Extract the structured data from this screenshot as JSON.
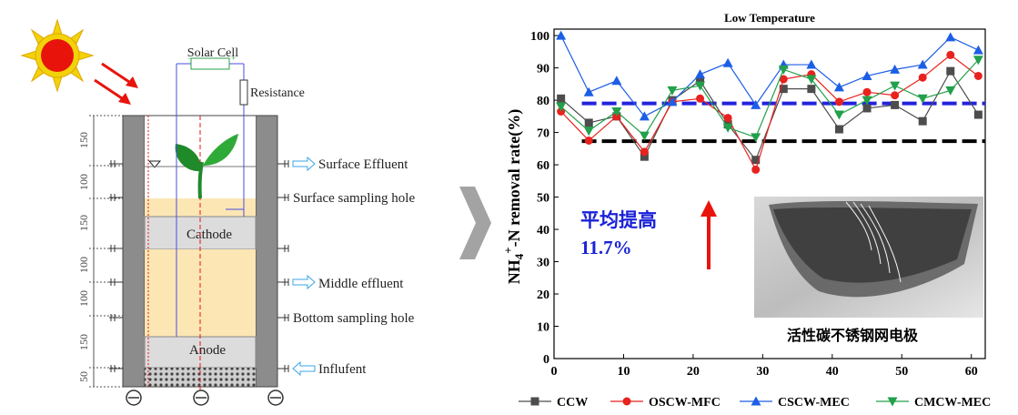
{
  "diagram": {
    "labels": {
      "solar_cell": "Solar Cell",
      "resistance": "Resistance",
      "surface_effluent": "Surface Effluent",
      "surface_sampling_hole": "Surface sampling hole",
      "cathode": "Cathode",
      "middle_effluent": "Middle effluent",
      "bottom_sampling_hole": "Bottom sampling hole",
      "anode": "Anode",
      "influent": "Influfent"
    },
    "dimensions": [
      "150",
      "100",
      "150",
      "100",
      "100",
      "150",
      "50"
    ],
    "colors": {
      "sun": "#f2d20a",
      "sun_core": "#e8140c",
      "arrow": "#e8140c",
      "sand": "#fbe6b4",
      "electrode": "#dcdcdc",
      "wall": "#8c8c8c",
      "wire": "#4a4ee0",
      "plant": "#1f8a2a"
    }
  },
  "annotation": {
    "increase_label": "平均提高",
    "increase_value": "11.7%",
    "photo_caption": "活性碳不锈钢网电极",
    "colors": {
      "text": "#1a22d8",
      "arrow": "#e8140c"
    }
  },
  "chart_data": {
    "type": "line",
    "title": "Low Temperature",
    "xlabel": "",
    "ylabel": "NH4+-N removal rate(%)",
    "xlim": [
      0,
      62
    ],
    "ylim": [
      0,
      102
    ],
    "xticks": [
      0,
      10,
      20,
      30,
      40,
      50,
      60
    ],
    "yticks": [
      0,
      10,
      20,
      30,
      40,
      50,
      60,
      70,
      80,
      90,
      100
    ],
    "x": [
      1,
      5,
      9,
      13,
      17,
      21,
      25,
      29,
      33,
      37,
      41,
      45,
      49,
      53,
      57,
      61
    ],
    "series": [
      {
        "name": "CCW",
        "marker": "square",
        "color": "#4d4d4d",
        "values": [
          80.5,
          73,
          75,
          62.5,
          80,
          86,
          72.5,
          61.5,
          83.5,
          83.5,
          71,
          77.5,
          78.5,
          73.5,
          89,
          75.5
        ]
      },
      {
        "name": "OSCW-MFC",
        "marker": "circle",
        "color": "#e8221e",
        "values": [
          76.5,
          67.5,
          75,
          64,
          79.5,
          80.5,
          74.5,
          58.5,
          86.5,
          88,
          79.5,
          82.5,
          81.5,
          87,
          94,
          87.5
        ]
      },
      {
        "name": "CSCW-MEC",
        "marker": "triangle-up",
        "color": "#1c5ee6",
        "values": [
          100,
          82.5,
          86,
          75,
          79.5,
          88,
          91.5,
          78.5,
          91,
          91,
          84,
          87.5,
          89.5,
          91,
          99.5,
          95.5
        ]
      },
      {
        "name": "CMCW-MEC",
        "marker": "triangle-down",
        "color": "#22a04a",
        "values": [
          78,
          70.5,
          76.5,
          69,
          83,
          84.5,
          71.5,
          68.5,
          89.5,
          86.5,
          75.5,
          80,
          84.5,
          80.5,
          83,
          92.5
        ]
      }
    ],
    "reference_lines": [
      {
        "y": 79,
        "color": "#2222dd",
        "style": "dashed"
      },
      {
        "y": 67.3,
        "color": "#000000",
        "style": "dashed"
      }
    ],
    "legend": "bottom",
    "grid": false
  }
}
